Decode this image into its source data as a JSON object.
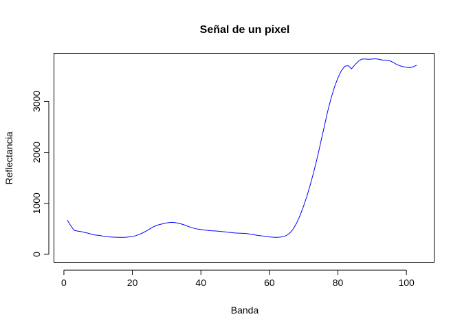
{
  "chart_data": {
    "type": "line",
    "title": "Señal de un pixel",
    "xlabel": "Banda",
    "ylabel": "Reflectancia",
    "xlim": [
      -3,
      108
    ],
    "ylim": [
      -150,
      3950
    ],
    "xticks": [
      0,
      20,
      40,
      60,
      80,
      100
    ],
    "yticks": [
      0,
      1000,
      2000,
      3000
    ],
    "grid": false,
    "color": "#0000ff",
    "series": [
      {
        "x": [
          1,
          2,
          3,
          4,
          5,
          6,
          7,
          8,
          9,
          10,
          11,
          12,
          13,
          14,
          15,
          16,
          17,
          18,
          19,
          20,
          21,
          22,
          23,
          24,
          25,
          26,
          27,
          28,
          29,
          30,
          31,
          32,
          33,
          34,
          35,
          36,
          37,
          38,
          39,
          40,
          41,
          42,
          43,
          44,
          45,
          46,
          47,
          48,
          49,
          50,
          51,
          52,
          53,
          54,
          55,
          56,
          57,
          58,
          59,
          60,
          61,
          62,
          63,
          64,
          65,
          66,
          67,
          68,
          69,
          70,
          71,
          72,
          73,
          74,
          75,
          76,
          77,
          78,
          79,
          80,
          81,
          82,
          83,
          84,
          85,
          86,
          87,
          88,
          89,
          90,
          91,
          92,
          93,
          94,
          95,
          96,
          97,
          98,
          99,
          100,
          101,
          102,
          103
        ],
        "values": [
          670,
          560,
          470,
          455,
          445,
          430,
          415,
          395,
          380,
          372,
          362,
          350,
          342,
          338,
          335,
          333,
          332,
          334,
          340,
          350,
          365,
          390,
          420,
          455,
          495,
          535,
          565,
          585,
          600,
          615,
          625,
          625,
          615,
          600,
          580,
          555,
          530,
          510,
          495,
          485,
          475,
          468,
          462,
          458,
          453,
          447,
          440,
          432,
          425,
          418,
          414,
          412,
          410,
          400,
          390,
          378,
          368,
          360,
          350,
          340,
          335,
          333,
          335,
          345,
          370,
          420,
          500,
          620,
          770,
          950,
          1150,
          1380,
          1630,
          1900,
          2200,
          2500,
          2800,
          3060,
          3280,
          3460,
          3600,
          3690,
          3700,
          3640,
          3720,
          3790,
          3830,
          3830,
          3825,
          3830,
          3835,
          3825,
          3810,
          3810,
          3800,
          3770,
          3730,
          3700,
          3680,
          3670,
          3660,
          3680,
          3710
        ]
      }
    ]
  }
}
